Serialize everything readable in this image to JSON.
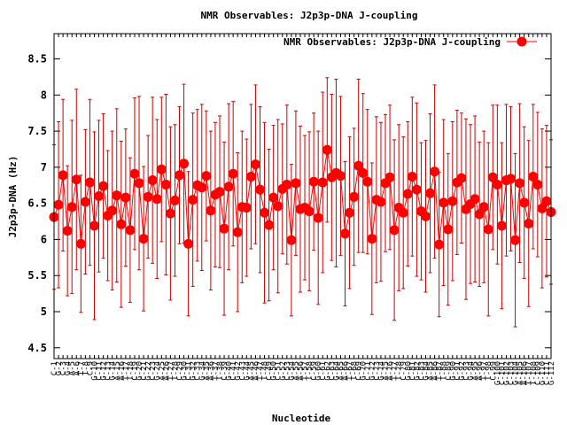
{
  "chart_data": {
    "type": "line",
    "title": "NMR Observables: J2p3p-DNA J-coupling",
    "xlabel": "Nucleotide",
    "ylabel": "J2p3p-DNA (Hz)",
    "ylim": [
      4.35,
      8.85
    ],
    "yticks": [
      4.5,
      5,
      5.5,
      6,
      6.5,
      7,
      7.5,
      8,
      8.5
    ],
    "grid": false,
    "legend_position": "top-right",
    "x_tick_labels": [
      "C-1",
      "G-2",
      "C-3",
      "G-4",
      "A-5",
      "A-6",
      "T-7",
      "T-8",
      "C-9",
      "G-10",
      "C-11",
      "G-12",
      "C-13",
      "G-14",
      "A-15",
      "A-16",
      "T-17",
      "T-18",
      "C-19",
      "G-20",
      "C-21",
      "G-22",
      "C-23",
      "G-24",
      "A-25",
      "A-26",
      "T-27",
      "T-28",
      "C-29",
      "G-30",
      "C-31",
      "G-32",
      "C-33",
      "G-34",
      "A-35",
      "A-36",
      "T-37",
      "T-38",
      "C-39",
      "G-40",
      "C-41",
      "G-42",
      "C-43",
      "G-44",
      "A-45",
      "A-46",
      "T-47",
      "T-48",
      "C-49",
      "G-50",
      "C-51",
      "G-52",
      "C-53",
      "G-54",
      "A-55",
      "A-56",
      "T-57",
      "T-58",
      "C-59",
      "G-60",
      "C-61",
      "G-62",
      "C-63",
      "G-64",
      "A-65",
      "A-66",
      "T-67",
      "T-68",
      "C-69",
      "G-70",
      "C-71",
      "G-72",
      "C-73",
      "G-74",
      "A-75",
      "A-76",
      "T-77",
      "T-78",
      "C-79",
      "G-80",
      "C-81",
      "G-82",
      "C-83",
      "G-84",
      "A-85",
      "A-86",
      "T-87",
      "T-88",
      "C-89",
      "G-90",
      "C-91",
      "G-92",
      "C-93",
      "G-94",
      "A-95",
      "A-96",
      "T-97",
      "T-98",
      "C-99",
      "G-100",
      "C-101",
      "G-102",
      "C-103",
      "G-104",
      "A-105",
      "A-106",
      "T-107",
      "T-108",
      "C-109",
      "G-110",
      "C-111",
      "G-112"
    ],
    "series": [
      {
        "name": "NMR Observables: J2p3p-DNA J-coupling",
        "color": "#ff0000",
        "errorbar_color": "#cc0000",
        "values": [
          6.31,
          6.48,
          6.89,
          6.12,
          6.45,
          6.83,
          5.94,
          6.52,
          6.79,
          6.19,
          6.6,
          6.74,
          6.33,
          6.4,
          6.61,
          6.21,
          6.58,
          6.13,
          6.91,
          6.78,
          6.01,
          6.59,
          6.82,
          6.56,
          6.97,
          6.76,
          6.36,
          6.54,
          6.89,
          7.05,
          5.94,
          6.55,
          6.75,
          6.72,
          6.88,
          6.4,
          6.62,
          6.66,
          6.15,
          6.73,
          6.91,
          6.1,
          6.45,
          6.44,
          6.87,
          7.04,
          6.69,
          6.37,
          6.2,
          6.58,
          6.46,
          6.7,
          6.76,
          5.99,
          6.78,
          6.42,
          6.44,
          6.39,
          6.8,
          6.3,
          6.79,
          7.24,
          6.86,
          6.92,
          6.88,
          6.08,
          6.37,
          6.59,
          7.02,
          6.92,
          6.8,
          6.01,
          6.55,
          6.52,
          6.78,
          6.86,
          6.13,
          6.44,
          6.37,
          6.63,
          6.87,
          6.69,
          6.39,
          6.32,
          6.64,
          6.94,
          5.93,
          6.51,
          6.14,
          6.53,
          6.79,
          6.85,
          6.42,
          6.49,
          6.56,
          6.35,
          6.45,
          6.14,
          6.86,
          6.76,
          6.19,
          6.82,
          6.84,
          5.99,
          6.78,
          6.51,
          6.22,
          6.87,
          6.76,
          6.43,
          6.53,
          6.38
        ],
        "errors": [
          1.0,
          1.15,
          1.05,
          0.9,
          1.2,
          1.25,
          0.95,
          1.0,
          1.15,
          1.3,
          1.05,
          1.0,
          0.9,
          1.1,
          1.2,
          1.15,
          0.95,
          1.0,
          1.05,
          1.2,
          1.0,
          0.85,
          1.15,
          1.1,
          1.0,
          1.25,
          1.2,
          1.05,
          0.95,
          1.1,
          1.0,
          1.2,
          1.05,
          1.15,
          0.9,
          1.1,
          1.0,
          1.05,
          1.2,
          1.15,
          1.0,
          1.1,
          1.05,
          0.95,
          1.0,
          1.1,
          1.15,
          1.25,
          1.05,
          1.0,
          1.2,
          0.9,
          1.1,
          1.05,
          1.0,
          1.15,
          1.0,
          1.1,
          0.95,
          1.2,
          1.25,
          1.0,
          1.15,
          1.3,
          1.1,
          1.0,
          1.05,
          0.95,
          1.2,
          1.1,
          1.0,
          1.05,
          1.15,
          1.1,
          0.95,
          1.0,
          1.25,
          1.15,
          1.05,
          1.0,
          1.1,
          1.2,
          0.95,
          1.05,
          1.1,
          1.2,
          1.0,
          1.15,
          1.05,
          1.1,
          1.0,
          0.9,
          1.25,
          1.1,
          1.15,
          1.0,
          1.05,
          1.2,
          1.0,
          1.1,
          1.15,
          1.05,
          1.0,
          1.2,
          1.1,
          1.05,
          1.15,
          1.0,
          1.0,
          1.1,
          1.05,
          1.0
        ]
      }
    ]
  }
}
